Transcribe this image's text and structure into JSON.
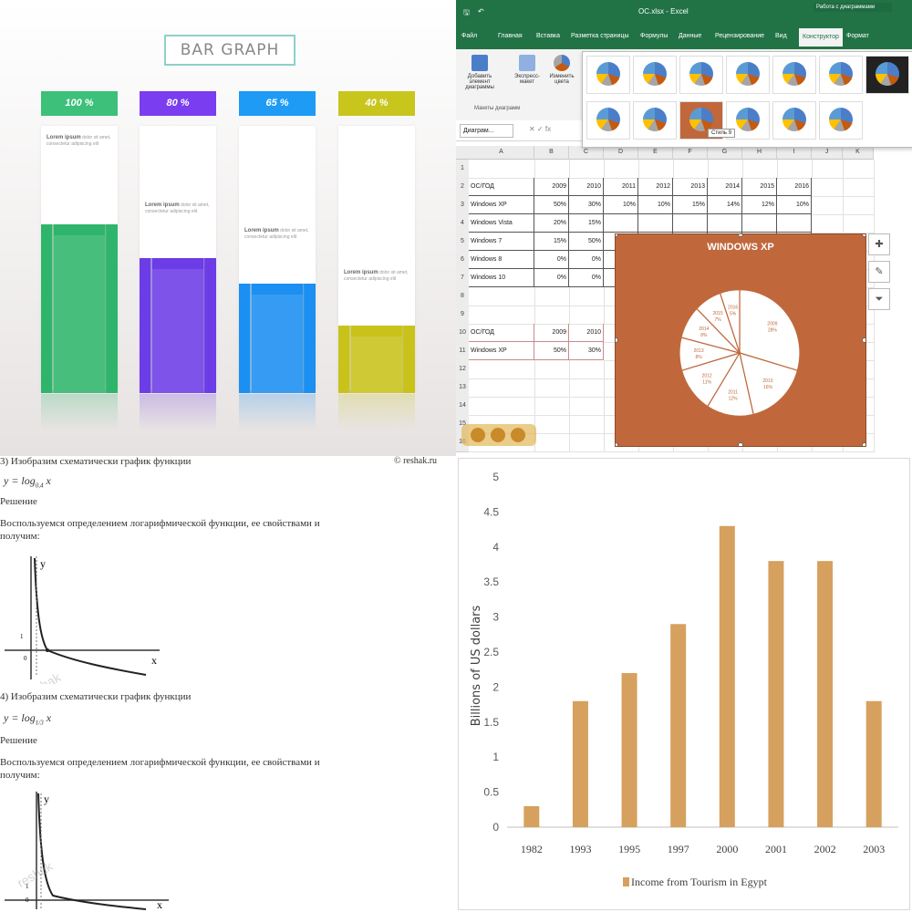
{
  "infographic": {
    "title": "BAR GRAPH",
    "columns": [
      {
        "label": "100 %",
        "value": 100,
        "color": "#2fb56b",
        "badge_color": "#3cc07a",
        "text_title": "Lorem ipsum",
        "text_body": "dolor sit amet, consectetur adipiscing elit"
      },
      {
        "label": "80 %",
        "value": 80,
        "color": "#6c3ce6",
        "badge_color": "#7a3df0",
        "text_title": "Lorem ipsum",
        "text_body": "dolor sit amet, consectetur adipiscing elit"
      },
      {
        "label": "65 %",
        "value": 65,
        "color": "#1b8ff2",
        "badge_color": "#1d9bf5",
        "text_title": "Lorem ipsum",
        "text_body": "dolor sit amet, consectetur adipiscing elit"
      },
      {
        "label": "40 %",
        "value": 40,
        "color": "#c9c21a",
        "badge_color": "#c8c51d",
        "text_title": "Lorem ipsum",
        "text_body": "dolor sit amet, consectetur adipiscing elit"
      }
    ]
  },
  "spreadsheet": {
    "title": "ОС.xlsx - Excel",
    "account": "Работа с диаграммами",
    "tabs": [
      "Файл",
      "Главная",
      "Вставка",
      "Разметка страницы",
      "Формулы",
      "Данные",
      "Рецензирование",
      "Вид",
      "Конструктор",
      "Формат"
    ],
    "active_tab": "Конструктор",
    "ribbon_buttons": [
      "Добавить элемент диаграммы",
      "Экспресс-макет",
      "Изменить цвета"
    ],
    "ribbon_group": "Макеты диаграмм",
    "name_box": "Диаграм...",
    "tooltip": "Стиль 9",
    "columns": [
      "A",
      "B",
      "C",
      "D",
      "E",
      "F",
      "G",
      "H",
      "I",
      "J",
      "K"
    ],
    "rows": [
      "1",
      "2",
      "3",
      "4",
      "5",
      "6",
      "7",
      "8",
      "9",
      "10",
      "11",
      "12",
      "13",
      "14",
      "15",
      "16"
    ],
    "table_header": [
      "ОС/ГОД",
      "2009",
      "2010",
      "2011",
      "2012",
      "2013",
      "2014",
      "2015",
      "2016"
    ],
    "table_rows": [
      [
        "Windows XP",
        "50%",
        "30%",
        "10%",
        "10%",
        "15%",
        "14%",
        "12%",
        "10%"
      ],
      [
        "Windows Vista",
        "20%",
        "15%",
        "",
        "",
        "",
        "",
        "",
        ""
      ],
      [
        "Windows 7",
        "15%",
        "50%",
        "",
        "",
        "",
        "",
        "",
        ""
      ],
      [
        "Windows 8",
        "0%",
        "0%",
        "",
        "",
        "",
        "",
        "",
        ""
      ],
      [
        "Windows 10",
        "0%",
        "0%",
        "",
        "",
        "",
        "",
        "",
        ""
      ]
    ],
    "second_header": [
      "ОС/ГОД",
      "2009",
      "2010"
    ],
    "second_row": [
      "Windows XP",
      "50%",
      "30%"
    ],
    "chart": {
      "title": "WINDOWS XP",
      "slices": [
        {
          "year": "2009",
          "pct": "28%",
          "value": 28
        },
        {
          "year": "2010",
          "pct": "16%",
          "value": 16
        },
        {
          "year": "2011",
          "pct": "12%",
          "value": 12
        },
        {
          "year": "2012",
          "pct": "11%",
          "value": 11
        },
        {
          "year": "2013",
          "pct": "8%",
          "value": 8
        },
        {
          "year": "2014",
          "pct": "8%",
          "value": 8
        },
        {
          "year": "2015",
          "pct": "7%",
          "value": 7
        },
        {
          "year": "2016",
          "pct": "5%",
          "value": 5
        }
      ]
    },
    "side_icons": [
      "plus-icon",
      "brush-icon",
      "filter-icon"
    ]
  },
  "document": {
    "task3": "3) Изобразим схематически график функции",
    "watermark": "© reshak.ru",
    "eq3": "y = log",
    "eq3_sub": "0,4",
    "eq3_var": "x",
    "solution3": "Решение",
    "text3a": "Воспользуемся определением логарифмической функции, ее свойствами и",
    "text3b": "получим:",
    "task4": "4) Изобразим схематически график функции",
    "eq4": "y = log",
    "eq4_sub": "1/3",
    "eq4_var": "x",
    "solution4": "Решение",
    "text4a": "Воспользуемся определением логарифмической функции, ее свойствами и",
    "text4b": "получим:",
    "axis_y": "y",
    "axis_x": "x",
    "tick_one": "1",
    "tick_zero": "0"
  },
  "chart_data": {
    "type": "bar",
    "title": "",
    "categories": [
      "1982",
      "1993",
      "1995",
      "1997",
      "2000",
      "2001",
      "2002",
      "2003"
    ],
    "series": [
      {
        "name": "Income from Tourism in Egypt",
        "values": [
          0.3,
          1.8,
          2.2,
          2.9,
          4.3,
          3.8,
          3.8,
          1.8
        ]
      }
    ],
    "xlabel": "",
    "ylabel": "Billions of US dollars",
    "ylim": [
      0,
      5
    ],
    "yticks": [
      "0",
      "0.5",
      "1",
      "1.5",
      "2",
      "2.5",
      "3",
      "3.5",
      "4",
      "4.5",
      "5"
    ],
    "bar_color": "#d6a05e",
    "grid": false,
    "legend_position": "bottom"
  }
}
